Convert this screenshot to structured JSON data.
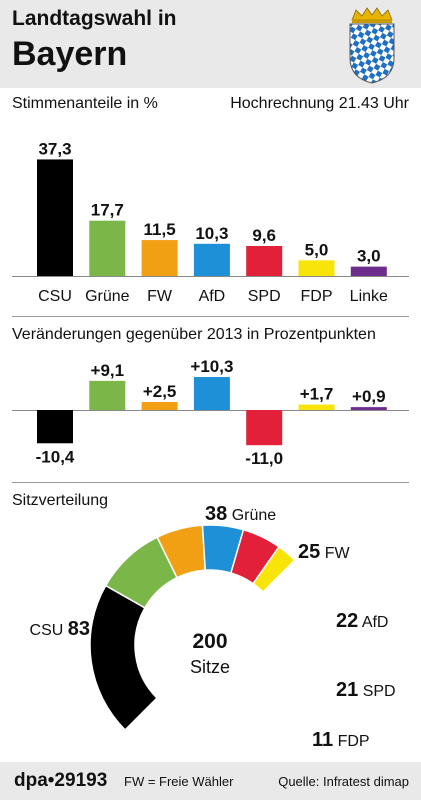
{
  "header": {
    "title_line1": "Landtagswahl in",
    "title_line2": "Bayern"
  },
  "colors": {
    "CSU": "#000000",
    "Grüne": "#7ab648",
    "FW": "#f2a013",
    "AfD": "#1e90d8",
    "SPD": "#e2203a",
    "FDP": "#f9e40a",
    "Linke": "#6e2c8c"
  },
  "chart_data": [
    {
      "type": "bar",
      "title": "Stimmenanteile in %",
      "subtitle": "Hochrechnung 21.43 Uhr",
      "categories": [
        "CSU",
        "Grüne",
        "FW",
        "AfD",
        "SPD",
        "FDP",
        "Linke"
      ],
      "values": [
        37.3,
        17.7,
        11.5,
        10.3,
        9.6,
        5.0,
        3.0
      ],
      "value_labels": [
        "37,3",
        "17,7",
        "11,5",
        "10,3",
        "9,6",
        "5,0",
        "3,0"
      ],
      "ylim": [
        0,
        40
      ]
    },
    {
      "type": "bar",
      "title": "Veränderungen gegenüber 2013 in Prozentpunkten",
      "categories": [
        "CSU",
        "Grüne",
        "FW",
        "AfD",
        "SPD",
        "FDP",
        "Linke"
      ],
      "values": [
        -10.4,
        9.1,
        2.5,
        10.3,
        -11.0,
        1.7,
        0.9
      ],
      "value_labels": [
        "-10,4",
        "+9,1",
        "+2,5",
        "+10,3",
        "-11,0",
        "+1,7",
        "+0,9"
      ]
    },
    {
      "type": "pie",
      "title": "Sitzverteilung",
      "total": 200,
      "total_label": "Sitze",
      "categories": [
        "CSU",
        "Grüne",
        "FW",
        "AfD",
        "SPD",
        "FDP"
      ],
      "values": [
        83,
        38,
        25,
        22,
        21,
        11
      ]
    }
  ],
  "footer": {
    "dpa": "dpa•29193",
    "note": "FW = Freie Wähler",
    "source": "Quelle: Infratest dimap"
  }
}
